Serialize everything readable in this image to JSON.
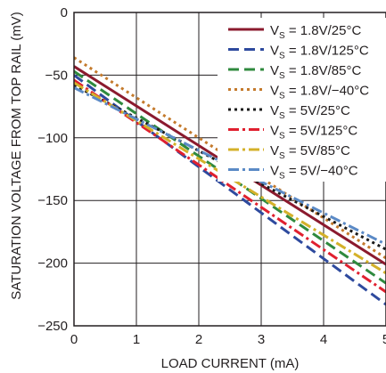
{
  "chart_data": {
    "type": "line",
    "title": "",
    "xlabel": "LOAD CURRENT (mA)",
    "ylabel": "SATURATION VOLTAGE FROM TOP RAIL (mV)",
    "xlim": [
      0,
      5
    ],
    "ylim": [
      -250,
      0
    ],
    "x_ticks": [
      "0",
      "1",
      "2",
      "3",
      "4",
      "5"
    ],
    "y_ticks": [
      "0",
      "−50",
      "−100",
      "−150",
      "−200",
      "−250"
    ],
    "grid": true,
    "legend_position": "top-right",
    "series": [
      {
        "name": "VS = 1.8V/25°C",
        "legend_main": "V",
        "legend_sub": "S",
        "legend_rest": " = 1.8V/25°C",
        "color": "#8b1a2e",
        "dash": "solid",
        "x": [
          0,
          5
        ],
        "y": [
          -43,
          -201
        ]
      },
      {
        "name": "VS = 1.8V/125°C",
        "legend_main": "V",
        "legend_sub": "S",
        "legend_rest": " = 1.8V/125°C",
        "color": "#2e4a9e",
        "dash": "dash",
        "x": [
          0,
          5
        ],
        "y": [
          -50,
          -233
        ]
      },
      {
        "name": "VS = 1.8V/85°C",
        "legend_main": "V",
        "legend_sub": "S",
        "legend_rest": " = 1.8V/85°C",
        "color": "#2f8a3e",
        "dash": "dash",
        "x": [
          0,
          5
        ],
        "y": [
          -47,
          -216
        ]
      },
      {
        "name": "VS = 1.8V/−40°C",
        "legend_main": "V",
        "legend_sub": "S",
        "legend_rest": " = 1.8V/−40°C",
        "color": "#c47a2c",
        "dash": "dot",
        "x": [
          0,
          5
        ],
        "y": [
          -36,
          -196
        ]
      },
      {
        "name": "VS = 5V/25°C",
        "legend_main": "V",
        "legend_sub": "S",
        "legend_rest": " = 5V/25°C",
        "color": "#1a1a1a",
        "dash": "dot",
        "x": [
          0,
          5
        ],
        "y": [
          -58,
          -189
        ]
      },
      {
        "name": "VS = 5V/125°C",
        "legend_main": "V",
        "legend_sub": "S",
        "legend_rest": " = 5V/125°C",
        "color": "#e0202f",
        "dash": "dashdot",
        "x": [
          0,
          5
        ],
        "y": [
          -54,
          -223
        ]
      },
      {
        "name": "VS = 5V/85°C",
        "legend_main": "V",
        "legend_sub": "S",
        "legend_rest": " = 5V/85°C",
        "color": "#d4b12a",
        "dash": "dashdot",
        "x": [
          0,
          5
        ],
        "y": [
          -56,
          -208
        ]
      },
      {
        "name": "VS = 5V/−40°C",
        "legend_main": "V",
        "legend_sub": "S",
        "legend_rest": " = 5V/−40°C",
        "color": "#5b8ac6",
        "dash": "dashdot",
        "x": [
          0,
          5
        ],
        "y": [
          -60,
          -185
        ]
      }
    ]
  }
}
